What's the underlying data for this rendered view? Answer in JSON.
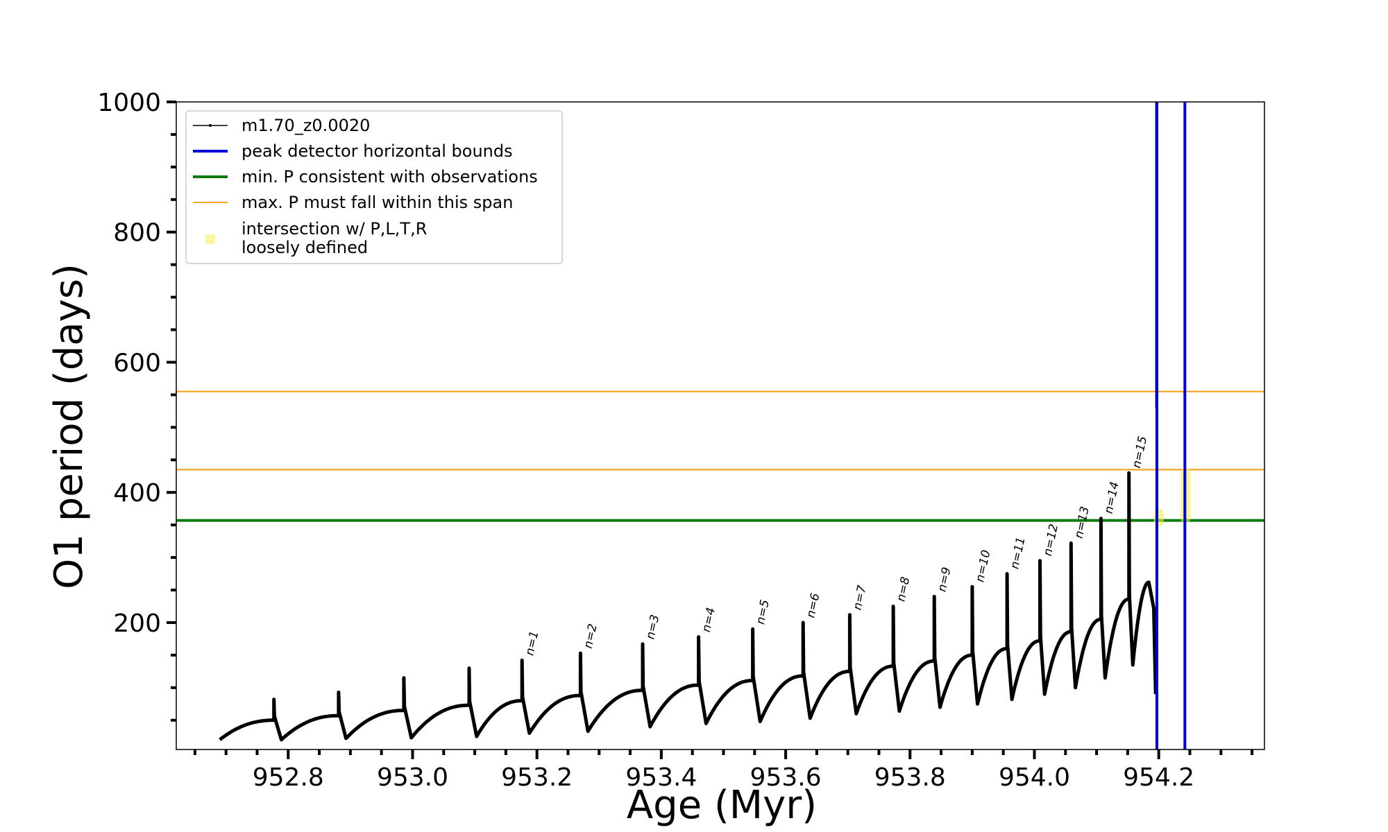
{
  "chart_data": {
    "type": "line",
    "title": "",
    "xlabel": "Age (Myr)",
    "ylabel": "O1 period (days)",
    "xlim": [
      952.62,
      954.37
    ],
    "ylim": [
      5,
      1000
    ],
    "x_ticks": [
      952.8,
      953.0,
      953.2,
      953.4,
      953.6,
      953.8,
      954.0,
      954.2
    ],
    "x_tick_labels": [
      "952.8",
      "953.0",
      "953.2",
      "953.4",
      "953.6",
      "953.8",
      "954.0",
      "954.2"
    ],
    "y_ticks": [
      200,
      400,
      600,
      800,
      1000
    ],
    "y_tick_labels": [
      "200",
      "400",
      "600",
      "800",
      "1000"
    ],
    "grid": false,
    "legend_position": "top-left",
    "legend": [
      {
        "label": "m1.70_z0.0020",
        "style": "line-marker",
        "color": "#000000"
      },
      {
        "label": "peak detector horizontal bounds",
        "style": "line",
        "color": "#0000dd"
      },
      {
        "label": "min. P consistent with observations",
        "style": "line",
        "color": "#0a7a0a"
      },
      {
        "label": "max. P must fall within this span",
        "style": "line",
        "color": "#f5a623"
      },
      {
        "label": "intersection w/ P,L,T,R",
        "label_line2": "loosely defined",
        "style": "marker",
        "color": "#f7f7a0"
      }
    ],
    "series": [
      {
        "name": "m1.70_z0.0020",
        "color": "#000000",
        "start": [
          952.69,
          20
        ],
        "cycles": [
          {
            "peak_x": 952.777,
            "base_before": 50,
            "spike_top": 82,
            "min_after": 20
          },
          {
            "peak_x": 952.881,
            "base_before": 57,
            "spike_top": 93,
            "min_after": 22
          },
          {
            "peak_x": 952.986,
            "base_before": 65,
            "spike_top": 115,
            "min_after": 23
          },
          {
            "peak_x": 953.091,
            "base_before": 73,
            "spike_top": 130,
            "min_after": 25
          },
          {
            "peak_x": 953.176,
            "base_before": 80,
            "spike_top": 142,
            "min_after": 30,
            "label": "n=1"
          },
          {
            "peak_x": 953.27,
            "base_before": 88,
            "spike_top": 153,
            "min_after": 33,
            "label": "n=2"
          },
          {
            "peak_x": 953.37,
            "base_before": 96,
            "spike_top": 167,
            "min_after": 40,
            "label": "n=3"
          },
          {
            "peak_x": 953.46,
            "base_before": 104,
            "spike_top": 178,
            "min_after": 45,
            "label": "n=4"
          },
          {
            "peak_x": 953.547,
            "base_before": 111,
            "spike_top": 190,
            "min_after": 48,
            "label": "n=5"
          },
          {
            "peak_x": 953.628,
            "base_before": 118,
            "spike_top": 200,
            "min_after": 53,
            "label": "n=6"
          },
          {
            "peak_x": 953.703,
            "base_before": 125,
            "spike_top": 212,
            "min_after": 60,
            "label": "n=7"
          },
          {
            "peak_x": 953.773,
            "base_before": 133,
            "spike_top": 225,
            "min_after": 64,
            "label": "n=8"
          },
          {
            "peak_x": 953.839,
            "base_before": 141,
            "spike_top": 240,
            "min_after": 70,
            "label": "n=9"
          },
          {
            "peak_x": 953.9,
            "base_before": 150,
            "spike_top": 255,
            "min_after": 75,
            "label": "n=10"
          },
          {
            "peak_x": 953.956,
            "base_before": 160,
            "spike_top": 275,
            "min_after": 82,
            "label": "n=11"
          },
          {
            "peak_x": 954.009,
            "base_before": 172,
            "spike_top": 295,
            "min_after": 90,
            "label": "n=12"
          },
          {
            "peak_x": 954.059,
            "base_before": 186,
            "spike_top": 322,
            "min_after": 100,
            "label": "n=13"
          },
          {
            "peak_x": 954.107,
            "base_before": 205,
            "spike_top": 360,
            "min_after": 115,
            "label": "n=14"
          },
          {
            "peak_x": 954.152,
            "base_before": 236,
            "spike_top": 430,
            "min_after": 135,
            "label": "n=15"
          }
        ],
        "final_rise": {
          "x_max": 954.184,
          "y_max": 262,
          "x_end": 954.195,
          "y_end": 90
        },
        "final_spike": {
          "x": 954.196,
          "y_top": 1000,
          "y_bottom": 530
        }
      }
    ],
    "vlines": [
      {
        "x": 954.197,
        "color": "#0000dd",
        "series": "peak detector horizontal bounds"
      },
      {
        "x": 954.242,
        "color": "#0000dd",
        "series": "peak detector horizontal bounds"
      }
    ],
    "hlines": [
      {
        "y": 357,
        "color": "#0a7a0a",
        "series": "min. P consistent with observations"
      },
      {
        "y": 435,
        "color": "#f5a623",
        "series": "max. P must fall within this span"
      },
      {
        "y": 555,
        "color": "#f5a623",
        "series": "max. P must fall within this span"
      }
    ],
    "highlights": [
      {
        "x": 954.2,
        "y_from": 355,
        "y_to": 368,
        "color": "#f0f040"
      },
      {
        "x": 954.243,
        "y_from": 360,
        "y_to": 430,
        "color": "#f0f040"
      }
    ]
  }
}
